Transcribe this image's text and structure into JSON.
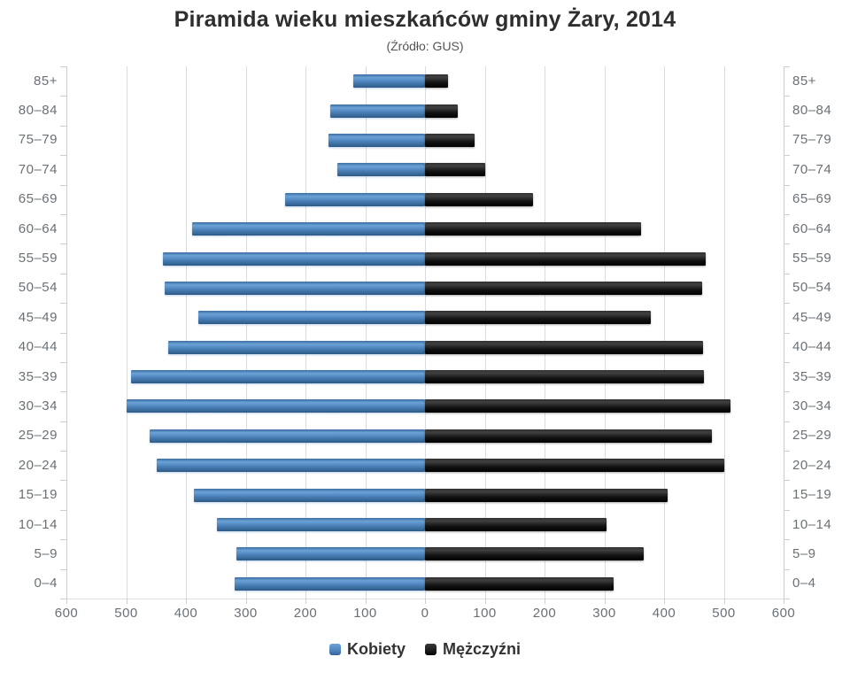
{
  "header": {
    "title": "Piramida wieku mieszkańców gminy Żary, 2014",
    "subtitle": "(Źródło: GUS)"
  },
  "legend": {
    "items": [
      {
        "label": "Kobiety",
        "color": "#4d84bb"
      },
      {
        "label": "Mężczyźni",
        "color": "#141414"
      }
    ]
  },
  "chart_data": {
    "type": "bar",
    "variant": "population-pyramid",
    "title": "Piramida wieku mieszkańców gminy Żary, 2014",
    "subtitle": "(Źródło: GUS)",
    "categories": [
      "85+",
      "80–84",
      "75–79",
      "70–74",
      "65–69",
      "60–64",
      "55–59",
      "50–54",
      "45–49",
      "40–44",
      "35–39",
      "30–34",
      "25–29",
      "20–24",
      "15–19",
      "10–14",
      "5–9",
      "0–4"
    ],
    "series": [
      {
        "name": "Kobiety",
        "side": "left",
        "color": "#4d84bb",
        "values": [
          120,
          158,
          162,
          146,
          234,
          390,
          438,
          436,
          380,
          430,
          492,
          500,
          461,
          449,
          386,
          348,
          315,
          318
        ]
      },
      {
        "name": "Mężczyźni",
        "side": "right",
        "color": "#141414",
        "values": [
          38,
          55,
          83,
          101,
          180,
          361,
          470,
          464,
          378,
          465,
          466,
          511,
          480,
          501,
          406,
          303,
          366,
          316
        ]
      }
    ],
    "xlabel": "",
    "ylabel": "",
    "xlim": [
      -600,
      600
    ],
    "x_tick_interval": 100,
    "x_tick_labels": [
      "600",
      "500",
      "400",
      "300",
      "200",
      "100",
      "0",
      "100",
      "200",
      "300",
      "400",
      "500",
      "600"
    ],
    "grid": true,
    "legend_position": "bottom",
    "axis_mirrored_category_labels": true
  }
}
